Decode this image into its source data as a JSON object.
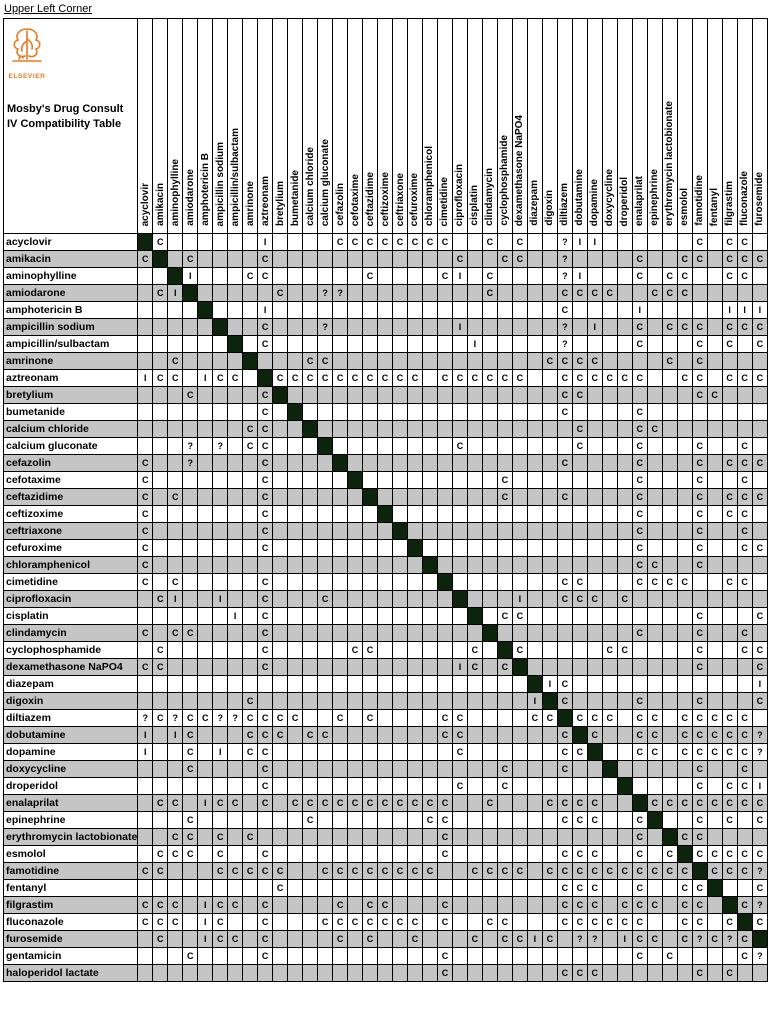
{
  "page": {
    "corner_label": "Upper Left Corner"
  },
  "logo": {
    "brand": "ELSEVIER"
  },
  "title": {
    "line1": "Mosby's Drug Consult",
    "line2": "IV Compatibility Table"
  },
  "colors": {
    "stripe": "#c5c5c5",
    "diagonal": "#0c230c",
    "logo_orange": "#e87a20"
  },
  "grid_legend": {
    "C": "compatible",
    "I": "incompatible",
    "?": "uncertain",
    "X": "same drug (black cell)",
    ".": "blank"
  },
  "columns": [
    "acyclovir",
    "amikacin",
    "aminophylline",
    "amiodarone",
    "amphotericin B",
    "ampicillin sodium",
    "ampicillin/sulbactam",
    "amrinone",
    "aztreonam",
    "bretylium",
    "bumetanide",
    "calcium chloride",
    "calcium gluconate",
    "cefazolin",
    "cefotaxime",
    "ceftazidime",
    "ceftizoxime",
    "ceftriaxone",
    "cefuroxime",
    "chloramphenicol",
    "cimetidine",
    "ciprofloxacin",
    "cisplatin",
    "clindamycin",
    "cyclophosphamide",
    "dexamethasone NaPO4",
    "diazepam",
    "digoxin",
    "diltiazem",
    "dobutamine",
    "dopamine",
    "doxycycline",
    "droperidol",
    "enalaprilat",
    "epinephrine",
    "erythromycin lactobionate",
    "esmolol",
    "famotidine",
    "fentanyl",
    "filgrastim",
    "fluconazole",
    "furosemide"
  ],
  "rows": [
    "acyclovir",
    "amikacin",
    "aminophylline",
    "amiodarone",
    "amphotericin B",
    "ampicillin sodium",
    "ampicillin/sulbactam",
    "amrinone",
    "aztreonam",
    "bretylium",
    "bumetanide",
    "calcium chloride",
    "calcium gluconate",
    "cefazolin",
    "cefotaxime",
    "ceftazidime",
    "ceftizoxime",
    "ceftriaxone",
    "cefuroxime",
    "chloramphenicol",
    "cimetidine",
    "ciprofloxacin",
    "cisplatin",
    "clindamycin",
    "cyclophosphamide",
    "dexamethasone NaPO4",
    "diazepam",
    "digoxin",
    "diltiazem",
    "dobutamine",
    "dopamine",
    "doxycycline",
    "droperidol",
    "enalaprilat",
    "epinephrine",
    "erythromycin lactobionate",
    "esmolol",
    "famotidine",
    "fentanyl",
    "filgrastim",
    "fluconazole",
    "furosemide",
    "gentamicin",
    "haloperidol lactate"
  ],
  "grid": [
    "XC......I....CCCCCCCC..C.C..?II......C.CC.",
    "CX.C....C............C..CC..?....C..CC.CCC",
    "..XI...CC......C....CI.C....?I...C.CC..CC.",
    ".CIX.....C..??.........C....CCCC..CCC.....",
    "....X...I...................C....I.....III",
    ".....X..C...?........I......?.I..C.CCC.CCC",
    "......X.C.............I.....?....C...C.C.C",
    "..C....X...CC..............CCCC....C.C....",
    "ICC.ICC.XCCCCCCCCCC.CCCCCC..CCCCCC..CC.CCC",
    "...C....CX..................CC.......CC...",
    "........C.X.................C....C........",
    ".......CC..X.................C...CC.......",
    "...?.?.CC...X........C.......C...C...C..C.",
    "C..?....C....X..............C....C...C.CCC",
    "C.......C.....X.........C........C...C..C.",
    "C.C.....C......X........C...C....C...C.CCC",
    "C.......C.......X................C...C.CC.",
    "C.......C........X...............C...C..C.",
    "C.......C.........X..............C...C..CC",
    "C..................X.............CC..C....",
    "C.C.....C...........X.......CC...CCCC..CC.",
    ".CI..I..C...C........X...I..CCC.C.........",
    "......I.C.............X.CC...........C...C",
    "C.CC....C..............X.........C...C..C.",
    ".C......C.....CC......C.XC.....CC....C..CC",
    "CC......C............IC.CX...........C...C",
    "..........................XIC............I",
    ".......C..................IXC....C...C...C",
    "?C?CC??CCCC..C.C....CC....CCXCCC.CC.CCCCC.",
    "I.IC...CCC.CC.......CC......CXC..CC.CCCCC?",
    "I..C.I.CC............C......CCX..CC.CCCCC?",
    "...C....C...............C...C..X.....C..C.",
    "........C............C..C.......X....C.CCI",
    ".CC.ICC.C.CCCCCCCCCCC..C...CCCC..XCCCCCCCC",
    "...C.......C.......CC.......CCC..CX..C.C.C",
    "..CC.C.C............C............C.XCC....",
    ".CCC.C..C...........C.......CCC..C.CXCCCCC",
    "CC...CCCCC..CCCCCCCC..CCCC.CCCCCCCCCCXCCC?",
    ".........C..................CCC..C..CCX..C",
    "CCC.ICC.C....C.CC...C.......CCC.CCC.CC.XC?",
    "CCC.IC..C...CCCCCCC.C..CC...CCCCCC..CC.CXC",
    ".C..ICC.C....C.C..C...C.CCIC.??.ICC.C?C?CX",
    "...C....C...........C............C.C....C?",
    "....................C.......CCC......C.C.."
  ]
}
